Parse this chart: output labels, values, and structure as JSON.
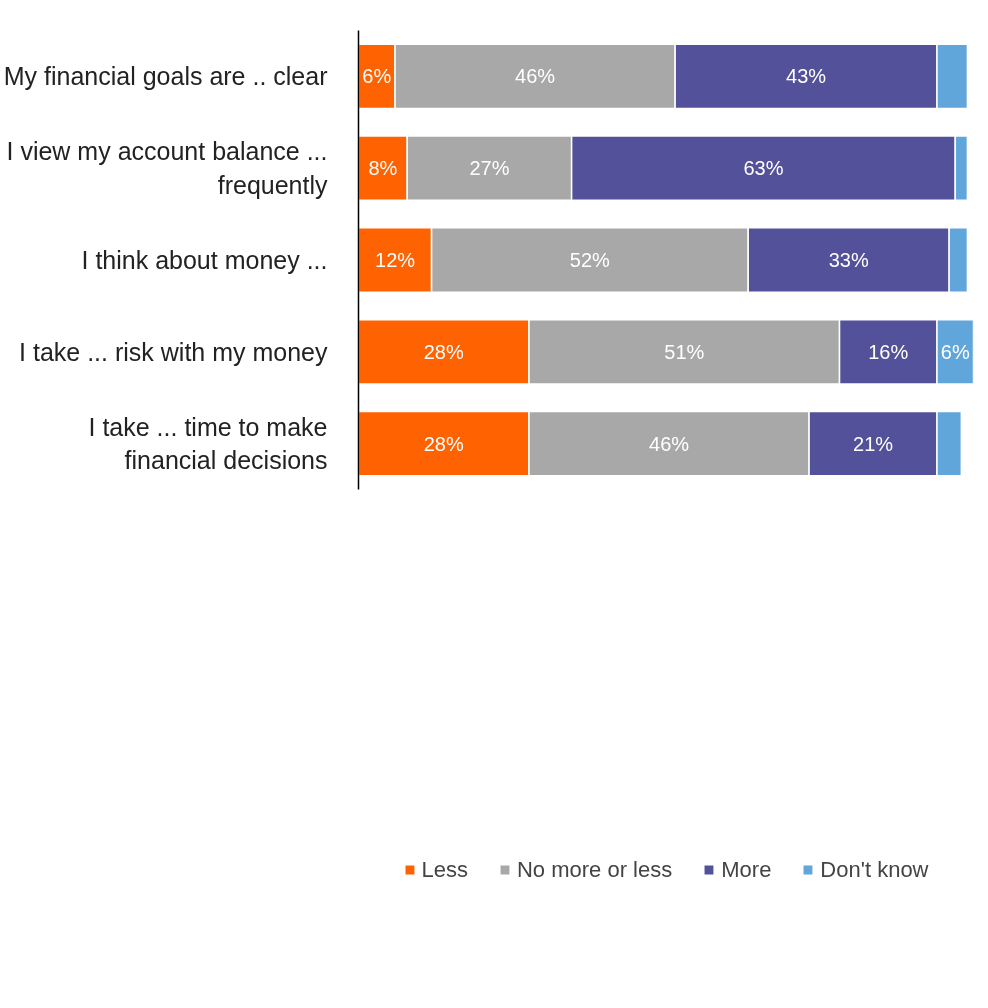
{
  "chart_data": {
    "type": "bar",
    "orientation": "horizontal",
    "stacked": true,
    "categories": [
      "My financial goals are .. clear",
      "I view my account balance ... frequently",
      "I think about money ...",
      "I take ... risk with my money",
      "I take ... time to make financial decisions"
    ],
    "series": [
      {
        "name": "Less",
        "color": "#ff6200",
        "values": [
          6,
          8,
          12,
          28,
          28
        ],
        "value_labels": [
          "6%",
          "8%",
          "12%",
          "28%",
          "28%"
        ]
      },
      {
        "name": "No more or less",
        "color": "#a8a8a8",
        "values": [
          46,
          27,
          52,
          51,
          46
        ],
        "value_labels": [
          "46%",
          "27%",
          "52%",
          "51%",
          "46%"
        ]
      },
      {
        "name": "More",
        "color": "#525199",
        "values": [
          43,
          63,
          33,
          16,
          21
        ],
        "value_labels": [
          "43%",
          "63%",
          "33%",
          "16%",
          "21%"
        ]
      },
      {
        "name": "Don't know",
        "color": "#60a6da",
        "values": [
          5,
          2,
          3,
          6,
          4
        ],
        "value_labels": [
          null,
          null,
          null,
          "6%",
          null
        ]
      }
    ],
    "legend": "bottom",
    "grid": false
  }
}
